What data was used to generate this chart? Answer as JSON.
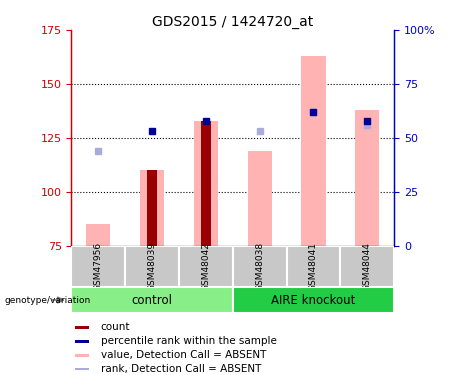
{
  "title": "GDS2015 / 1424720_at",
  "samples": [
    "GSM47956",
    "GSM48039",
    "GSM48042",
    "GSM48038",
    "GSM48041",
    "GSM48044"
  ],
  "group_labels": [
    "control",
    "AIRE knockout"
  ],
  "ylim_left": [
    75,
    175
  ],
  "ylim_right": [
    0,
    100
  ],
  "yticks_left": [
    75,
    100,
    125,
    150,
    175
  ],
  "yticks_right": [
    0,
    25,
    50,
    75,
    100
  ],
  "ytick_right_labels": [
    "0",
    "25",
    "50",
    "75",
    "100%"
  ],
  "bar_value_absent": [
    85,
    110,
    133,
    119,
    163,
    138
  ],
  "bar_count": [
    null,
    110,
    133,
    null,
    null,
    null
  ],
  "dot_percentile": [
    null,
    128,
    133,
    null,
    137,
    133
  ],
  "dot_rank_absent": [
    119,
    null,
    null,
    128,
    137,
    131
  ],
  "color_value_absent": "#FFB3B3",
  "color_rank_absent": "#AAAADD",
  "color_count": "#990000",
  "color_percentile": "#000099",
  "color_group_control": "#88EE88",
  "color_group_aire": "#22CC44",
  "color_group_bg": "#C8C8C8",
  "left_axis_color": "#CC0000",
  "right_axis_color": "#0000CC",
  "grid_color": "#000000"
}
